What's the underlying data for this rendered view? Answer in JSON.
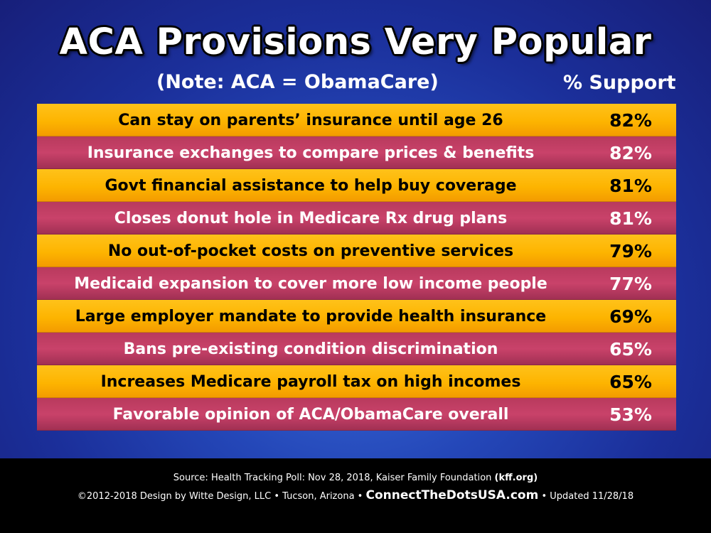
{
  "title": "ACA Provisions Very Popular",
  "subtitle": "(Note: ACA = ObamaCare)",
  "column_header": "% Support",
  "colors": {
    "gold_row": "#fdb400",
    "rose_row": "#c9426a",
    "background": "#2447b8",
    "footer": "#000000"
  },
  "chart_data": {
    "type": "table",
    "title": "ACA Provisions Very Popular",
    "subtitle": "(Note: ACA = ObamaCare)",
    "columns": [
      "",
      "% Support"
    ],
    "rows": [
      {
        "label": "Can stay on parents’ insurance until age 26",
        "value": "82%",
        "value_num": 82
      },
      {
        "label": "Insurance exchanges to compare prices & benefits",
        "value": "82%",
        "value_num": 82
      },
      {
        "label": "Govt financial assistance to help buy coverage",
        "value": "81%",
        "value_num": 81
      },
      {
        "label": "Closes donut hole in Medicare Rx drug plans",
        "value": "81%",
        "value_num": 81
      },
      {
        "label": "No out-of-pocket costs on preventive services",
        "value": "79%",
        "value_num": 79
      },
      {
        "label": "Medicaid expansion to cover more low income people",
        "value": "77%",
        "value_num": 77
      },
      {
        "label": "Large employer mandate to provide health insurance",
        "value": "69%",
        "value_num": 69
      },
      {
        "label": "Bans pre-existing condition discrimination",
        "value": "65%",
        "value_num": 65
      },
      {
        "label": "Increases Medicare payroll tax on high incomes",
        "value": "65%",
        "value_num": 65
      },
      {
        "label": "Favorable opinion of ACA/ObamaCare overall",
        "value": "53%",
        "value_num": 53
      }
    ]
  },
  "footer": {
    "source_prefix": "Source: Health Tracking Poll: Nov 28, 2018, Kaiser Family Foundation",
    "source_link": "(kff.org)",
    "credit_left": "©2012-2018 Design by Witte Design, LLC • Tucson, Arizona •",
    "site": "ConnectTheDotsUSA.com",
    "credit_right": "• Updated 11/28/18"
  }
}
